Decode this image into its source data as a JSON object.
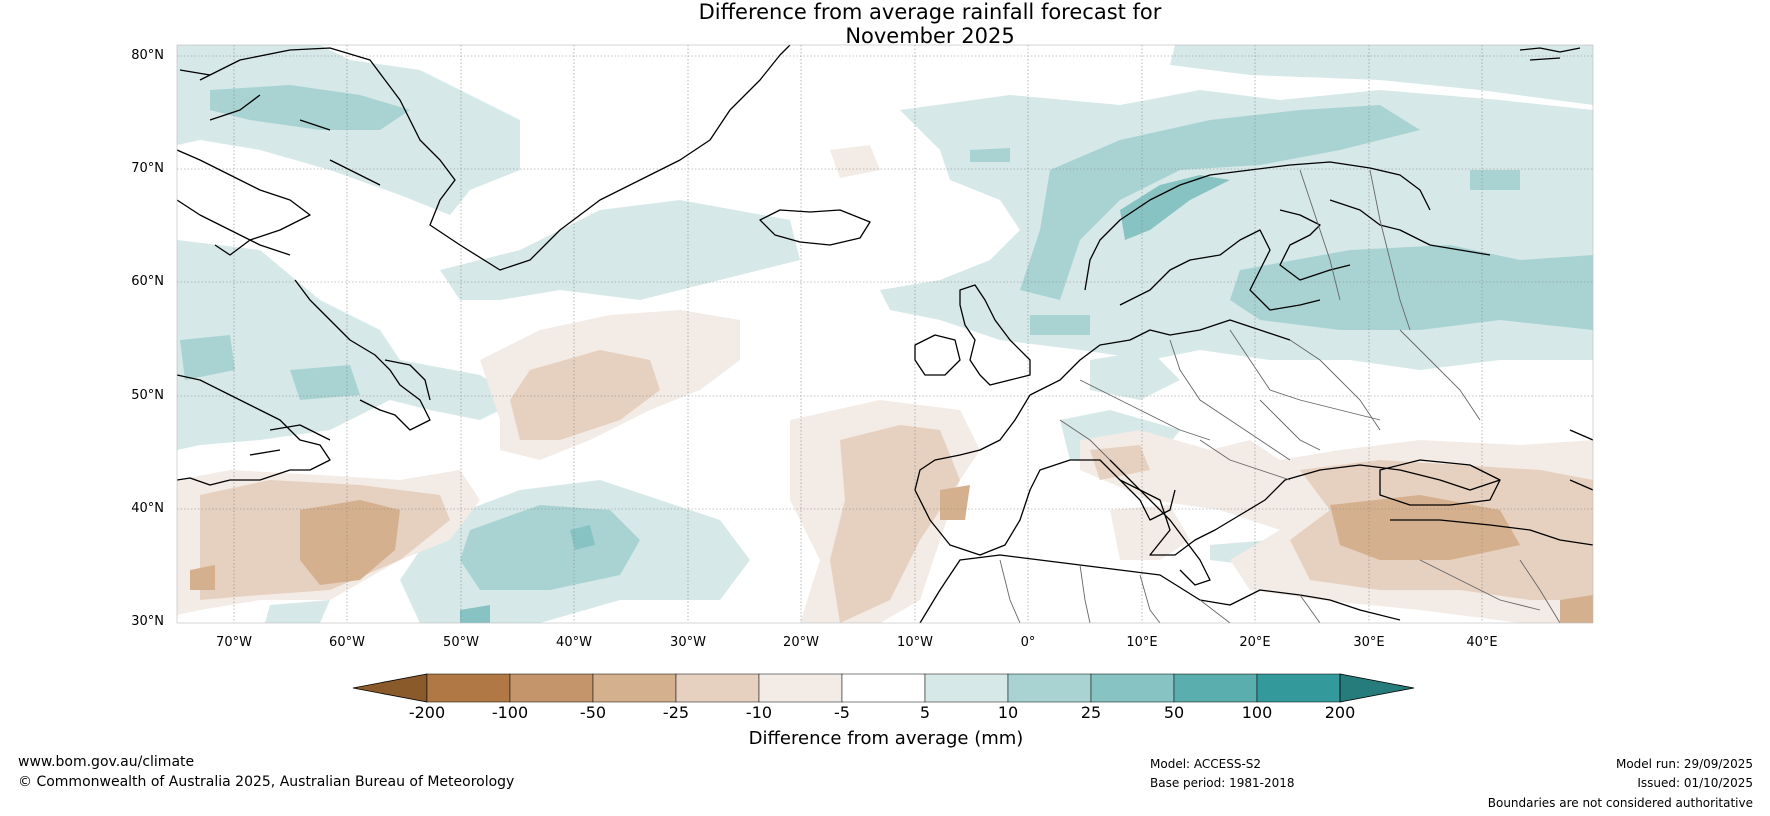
{
  "title": {
    "line1": "Difference from average rainfall forecast for",
    "line2": "November 2025"
  },
  "map": {
    "region": "North Atlantic and Europe",
    "latitude_labels": [
      "80°N",
      "70°N",
      "60°N",
      "50°N",
      "40°N",
      "30°N"
    ],
    "longitude_labels": [
      "70°W",
      "60°W",
      "50°W",
      "40°W",
      "30°W",
      "20°W",
      "10°W",
      "0°",
      "10°E",
      "20°E",
      "30°E",
      "40°E"
    ]
  },
  "legend": {
    "title": "Difference from average (mm)",
    "ticks": [
      "-200",
      "-100",
      "-50",
      "-25",
      "-10",
      "-5",
      "5",
      "10",
      "25",
      "50",
      "100",
      "200"
    ],
    "colors": [
      "#8b5a2b",
      "#b07844",
      "#c4956a",
      "#d4b08e",
      "#e6d0bf",
      "#f3ebe5",
      "#ffffff",
      "#d6e8e8",
      "#a9d3d3",
      "#86c3c2",
      "#5aaeae",
      "#33999a",
      "#267b7b"
    ]
  },
  "footer": {
    "website": "www.bom.gov.au/climate",
    "copyright": "© Commonwealth of Australia 2025, Australian Bureau of Meteorology",
    "model": "Model: ACCESS-S2",
    "base_period": "Base period: 1981-2018",
    "model_run": "Model run: 29/09/2025",
    "issued": "Issued: 01/10/2025",
    "disclaimer": "Boundaries are not considered authoritative"
  }
}
